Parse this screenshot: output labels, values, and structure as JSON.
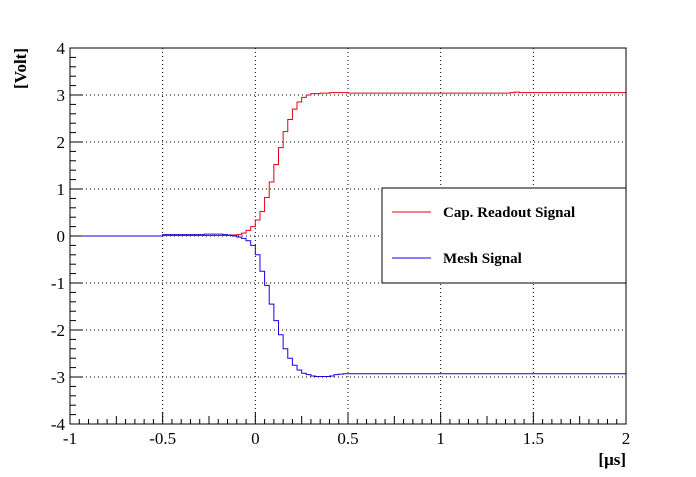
{
  "chart_data": {
    "type": "line",
    "title": "",
    "xlabel": "[μs]",
    "ylabel": "[Volt]",
    "xlim": [
      -1,
      2
    ],
    "ylim": [
      -4,
      4
    ],
    "grid": true,
    "legend_placement": "right",
    "x_ticks": [
      -1,
      -0.5,
      0,
      0.5,
      1,
      1.5,
      2
    ],
    "x_tick_labels": [
      "-1",
      "-0.5",
      "0",
      "0.5",
      "1",
      "1.5",
      "2"
    ],
    "y_ticks": [
      -4,
      -3,
      -2,
      -1,
      0,
      1,
      2,
      3,
      4
    ],
    "y_tick_labels": [
      "-4",
      "-3",
      "-2",
      "-1",
      "0",
      "1",
      "2",
      "3",
      "4"
    ],
    "step_width": 0.025,
    "series": [
      {
        "name": "Cap. Readout Signal",
        "color": "#e0001a",
        "x_start": -1.0,
        "values": [
          0.0,
          0.0,
          0.0,
          0.0,
          0.0,
          0.0,
          0.0,
          0.0,
          0.0,
          0.0,
          0.0,
          0.0,
          0.0,
          0.0,
          0.0,
          0.0,
          0.0,
          0.0,
          0.0,
          0.0,
          0.01,
          0.01,
          0.01,
          0.01,
          0.01,
          0.01,
          0.01,
          0.01,
          0.01,
          0.01,
          0.01,
          0.01,
          0.01,
          0.01,
          0.01,
          0.02,
          0.03,
          0.06,
          0.12,
          0.2,
          0.34,
          0.52,
          0.82,
          1.15,
          1.52,
          1.88,
          2.22,
          2.48,
          2.7,
          2.85,
          2.95,
          3.0,
          3.03,
          3.03,
          3.04,
          3.04,
          3.05,
          3.05,
          3.05,
          3.05,
          3.04,
          3.04,
          3.04,
          3.04,
          3.04,
          3.04,
          3.04,
          3.04,
          3.04,
          3.04,
          3.04,
          3.04,
          3.04,
          3.04,
          3.04,
          3.04,
          3.04,
          3.04,
          3.04,
          3.04,
          3.04,
          3.04,
          3.04,
          3.04,
          3.04,
          3.04,
          3.04,
          3.04,
          3.04,
          3.04,
          3.04,
          3.04,
          3.04,
          3.04,
          3.04,
          3.05,
          3.06,
          3.05,
          3.05,
          3.05,
          3.05,
          3.05,
          3.05,
          3.05,
          3.05,
          3.05,
          3.05,
          3.05,
          3.05,
          3.05,
          3.05,
          3.05,
          3.05,
          3.05,
          3.05,
          3.05,
          3.05,
          3.05,
          3.05,
          3.05
        ]
      },
      {
        "name": "Mesh Signal",
        "color": "#1a00e0",
        "x_start": -1.0,
        "values": [
          0.0,
          0.0,
          0.0,
          0.0,
          0.0,
          0.0,
          0.0,
          0.0,
          0.0,
          0.0,
          0.0,
          0.0,
          0.0,
          0.0,
          0.0,
          0.0,
          0.0,
          0.0,
          0.0,
          0.0,
          0.03,
          0.03,
          0.03,
          0.03,
          0.03,
          0.03,
          0.03,
          0.03,
          0.03,
          0.04,
          0.04,
          0.04,
          0.04,
          0.03,
          0.02,
          0.0,
          -0.02,
          -0.05,
          -0.1,
          -0.2,
          -0.4,
          -0.75,
          -1.05,
          -1.45,
          -1.8,
          -2.1,
          -2.4,
          -2.6,
          -2.75,
          -2.85,
          -2.92,
          -2.95,
          -2.98,
          -2.99,
          -2.99,
          -2.99,
          -2.98,
          -2.95,
          -2.94,
          -2.93,
          -2.93,
          -2.93,
          -2.93,
          -2.93,
          -2.93,
          -2.93,
          -2.93,
          -2.93,
          -2.93,
          -2.93,
          -2.93,
          -2.93,
          -2.93,
          -2.93,
          -2.93,
          -2.93,
          -2.93,
          -2.93,
          -2.93,
          -2.93,
          -2.93,
          -2.93,
          -2.93,
          -2.93,
          -2.93,
          -2.93,
          -2.93,
          -2.93,
          -2.93,
          -2.93,
          -2.93,
          -2.93,
          -2.93,
          -2.93,
          -2.93,
          -2.93,
          -2.93,
          -2.93,
          -2.93,
          -2.93,
          -2.93,
          -2.93,
          -2.93,
          -2.93,
          -2.93,
          -2.93,
          -2.93,
          -2.93,
          -2.93,
          -2.93,
          -2.93,
          -2.93,
          -2.93,
          -2.93,
          -2.93,
          -2.93,
          -2.93,
          -2.93,
          -2.93,
          -2.93
        ]
      }
    ]
  }
}
